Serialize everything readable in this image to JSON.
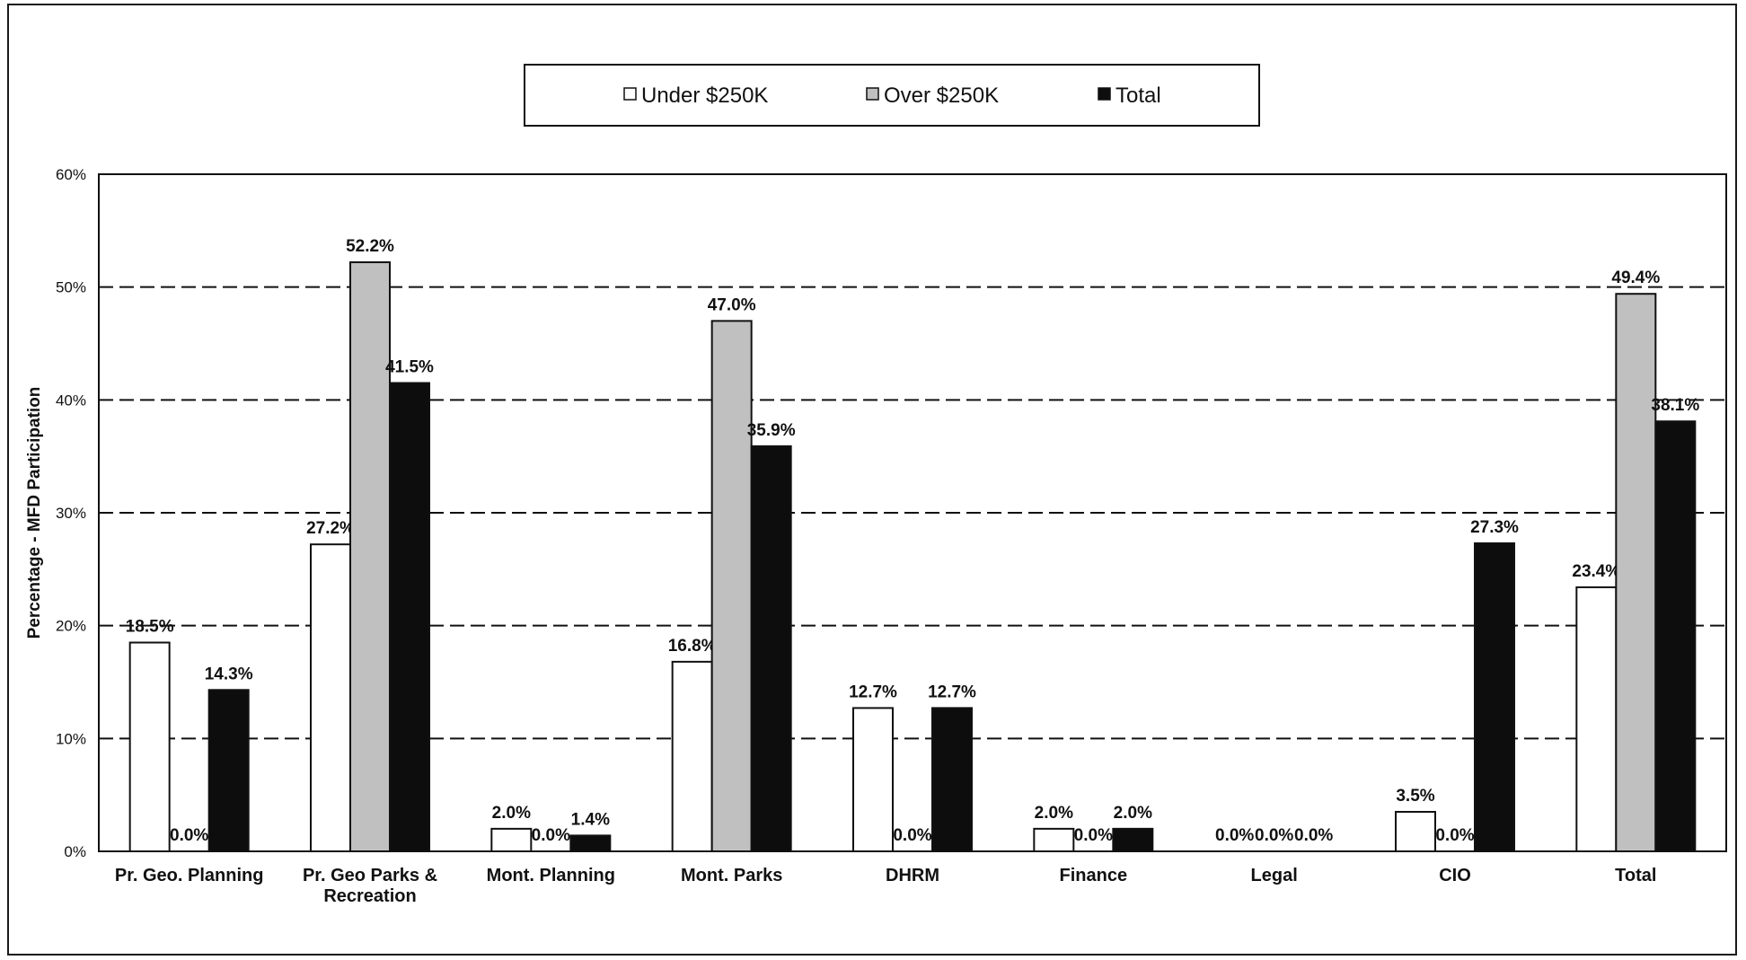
{
  "chart_data": {
    "type": "bar",
    "title": "",
    "xlabel": "",
    "ylabel": "Percentage - MFD Participation",
    "ylim": [
      0,
      60
    ],
    "y_ticks": [
      "0%",
      "10%",
      "20%",
      "30%",
      "40%",
      "50%",
      "60%"
    ],
    "grid": "dashed horizontal",
    "legend_position": "top",
    "categories": [
      [
        "Pr. Geo. Planning"
      ],
      [
        "Pr. Geo Parks &",
        "Recreation"
      ],
      [
        "Mont. Planning"
      ],
      [
        "Mont. Parks"
      ],
      [
        "DHRM"
      ],
      [
        "Finance"
      ],
      [
        "Legal"
      ],
      [
        "CIO"
      ],
      [
        "Total"
      ]
    ],
    "series": [
      {
        "name": "Under $250K",
        "color": "#ffffff",
        "values": [
          18.5,
          27.2,
          2.0,
          16.8,
          12.7,
          2.0,
          0.0,
          3.5,
          23.4
        ],
        "labels": [
          "18.5%",
          "27.2%",
          "2.0%",
          "16.8%",
          "12.7%",
          "2.0%",
          "0.0%",
          "3.5%",
          "23.4%"
        ]
      },
      {
        "name": "Over $250K",
        "color": "#c0c0c0",
        "values": [
          0.0,
          52.2,
          0.0,
          47.0,
          0.0,
          0.0,
          0.0,
          0.0,
          49.4
        ],
        "labels": [
          "0.0%",
          "52.2%",
          "0.0%",
          "47.0%",
          "0.0%",
          "0.0%",
          "0.0%",
          "0.0%",
          "49.4%"
        ]
      },
      {
        "name": "Total",
        "color": "#0d0d0d",
        "values": [
          14.3,
          41.5,
          1.4,
          35.9,
          12.7,
          2.0,
          0.0,
          27.3,
          38.1
        ],
        "labels": [
          "14.3%",
          "41.5%",
          "1.4%",
          "35.9%",
          "12.7%",
          "2.0%",
          "0.0%",
          "27.3%",
          "38.1%"
        ]
      }
    ]
  }
}
